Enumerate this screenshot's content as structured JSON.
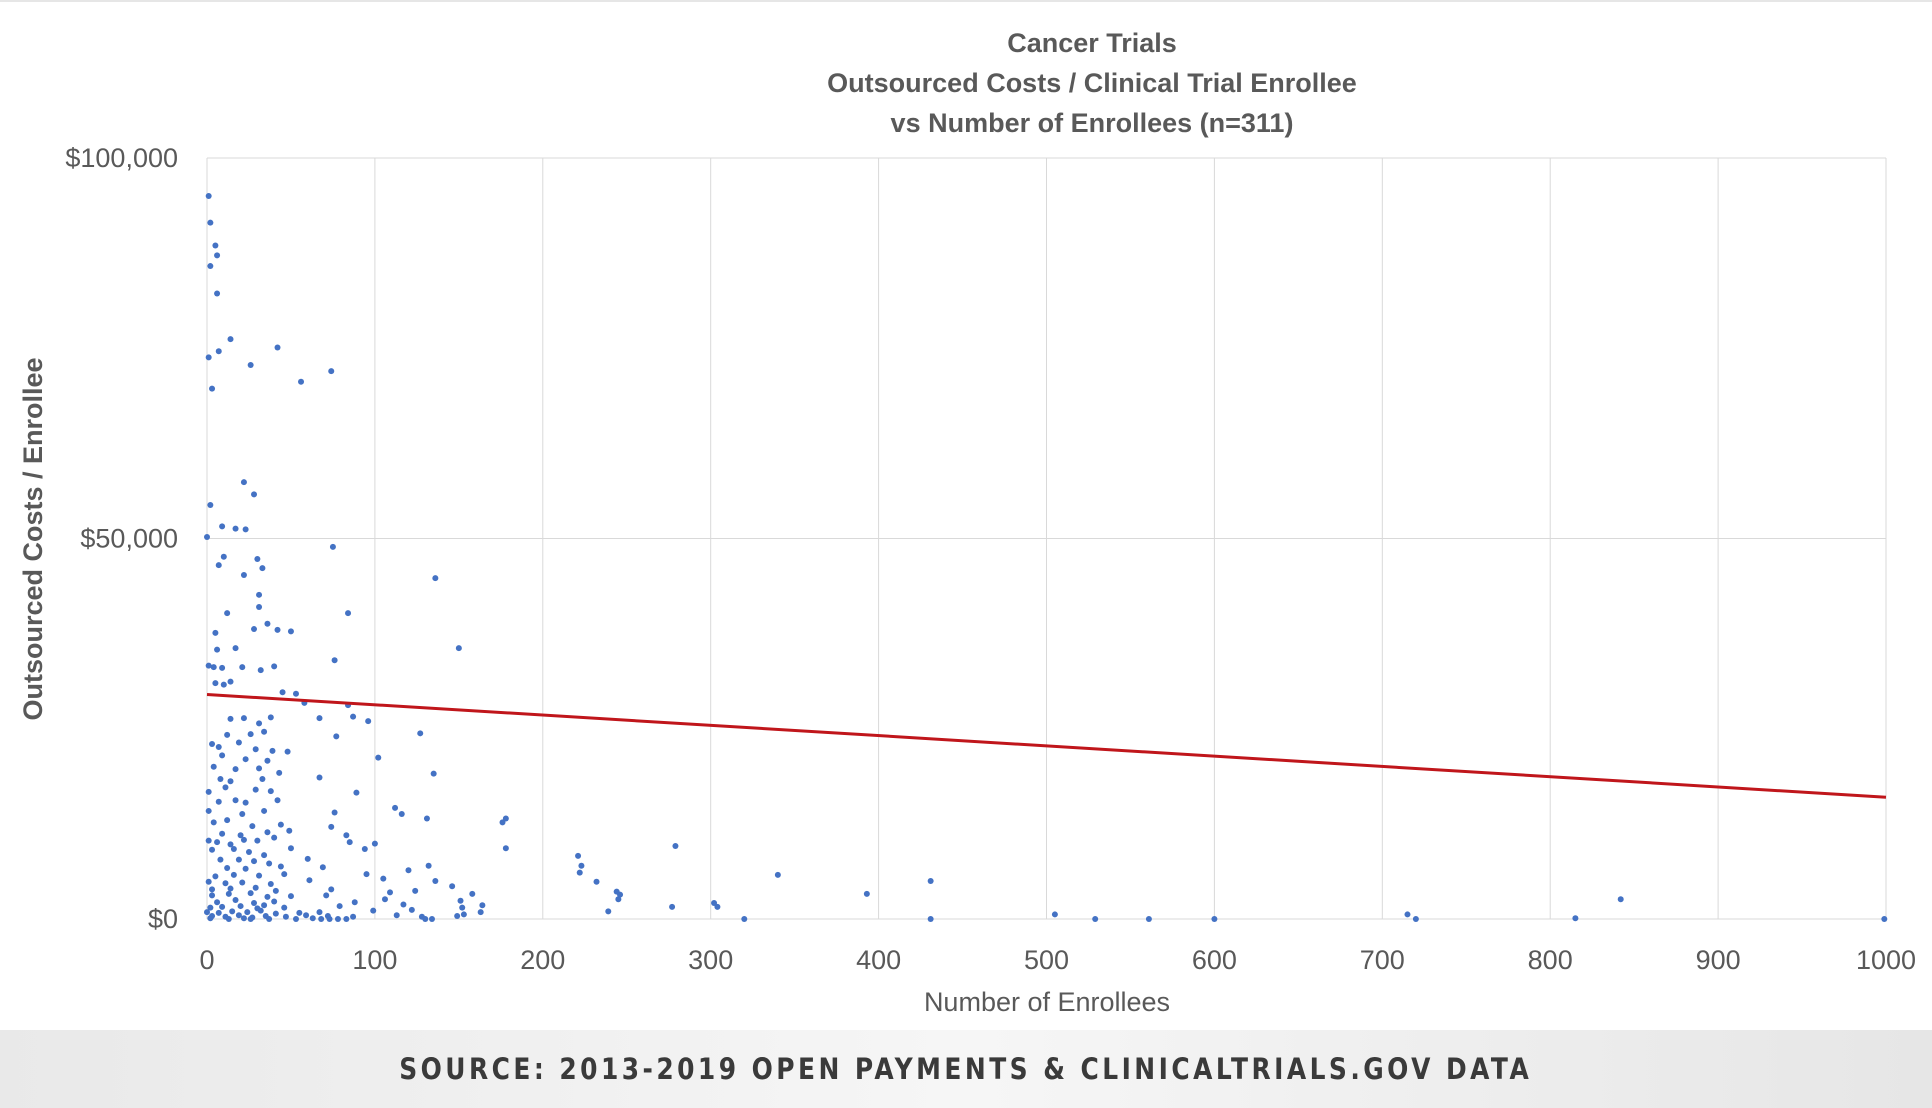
{
  "chart_data": {
    "type": "scatter",
    "title_lines": [
      "Cancer Trials",
      "Outsourced Costs / Clinical Trial Enrollee",
      "vs Number of Enrollees (n=311)"
    ],
    "xlabel": "Number of Enrollees",
    "ylabel": "Outsourced Costs / Enrollee",
    "xlim": [
      0,
      1000
    ],
    "ylim": [
      0,
      100000
    ],
    "x_ticks": [
      0,
      100,
      200,
      300,
      400,
      500,
      600,
      700,
      800,
      900,
      1000
    ],
    "x_tick_labels": [
      "0",
      "100",
      "200",
      "300",
      "400",
      "500",
      "600",
      "700",
      "800",
      "900",
      "1000"
    ],
    "y_ticks": [
      0,
      50000,
      100000
    ],
    "y_tick_labels": [
      "$0",
      "$50,000",
      "$100,000"
    ],
    "grid": true,
    "colors": {
      "points": "#4472c4",
      "trendline": "#c0161b",
      "grid": "#d9d9d9"
    },
    "trendline": {
      "x": [
        0,
        1000
      ],
      "y": [
        29500,
        16000
      ]
    },
    "points": [
      [
        1,
        95000
      ],
      [
        2,
        91500
      ],
      [
        5,
        88500
      ],
      [
        6,
        87200
      ],
      [
        2,
        85800
      ],
      [
        6,
        82200
      ],
      [
        1,
        73800
      ],
      [
        7,
        74600
      ],
      [
        14,
        76200
      ],
      [
        26,
        72800
      ],
      [
        42,
        75100
      ],
      [
        56,
        70600
      ],
      [
        74,
        72000
      ],
      [
        3,
        69700
      ],
      [
        22,
        57400
      ],
      [
        28,
        55800
      ],
      [
        2,
        54400
      ],
      [
        9,
        51600
      ],
      [
        17,
        51300
      ],
      [
        23,
        51200
      ],
      [
        0,
        50200
      ],
      [
        7,
        46500
      ],
      [
        10,
        47600
      ],
      [
        22,
        45200
      ],
      [
        30,
        47300
      ],
      [
        33,
        46100
      ],
      [
        75,
        48900
      ],
      [
        136,
        44800
      ],
      [
        31,
        42600
      ],
      [
        12,
        40200
      ],
      [
        31,
        41000
      ],
      [
        84,
        40200
      ],
      [
        5,
        37600
      ],
      [
        28,
        38100
      ],
      [
        36,
        38800
      ],
      [
        42,
        38000
      ],
      [
        50,
        37800
      ],
      [
        6,
        35400
      ],
      [
        17,
        35600
      ],
      [
        76,
        34000
      ],
      [
        150,
        35600
      ],
      [
        1,
        33300
      ],
      [
        4,
        33100
      ],
      [
        9,
        33000
      ],
      [
        21,
        33100
      ],
      [
        32,
        32700
      ],
      [
        40,
        33200
      ],
      [
        5,
        31000
      ],
      [
        10,
        30800
      ],
      [
        14,
        31200
      ],
      [
        45,
        29800
      ],
      [
        53,
        29600
      ],
      [
        58,
        28400
      ],
      [
        84,
        28100
      ],
      [
        67,
        26400
      ],
      [
        87,
        26600
      ],
      [
        96,
        26000
      ],
      [
        14,
        26300
      ],
      [
        22,
        26400
      ],
      [
        31,
        25700
      ],
      [
        38,
        26500
      ],
      [
        12,
        24200
      ],
      [
        26,
        24300
      ],
      [
        34,
        24600
      ],
      [
        3,
        23000
      ],
      [
        7,
        22600
      ],
      [
        19,
        23200
      ],
      [
        29,
        22300
      ],
      [
        39,
        22100
      ],
      [
        48,
        22000
      ],
      [
        77,
        24000
      ],
      [
        127,
        24400
      ],
      [
        9,
        21500
      ],
      [
        23,
        21000
      ],
      [
        36,
        20800
      ],
      [
        102,
        21200
      ],
      [
        4,
        20000
      ],
      [
        17,
        19700
      ],
      [
        31,
        19800
      ],
      [
        43,
        19200
      ],
      [
        8,
        18400
      ],
      [
        14,
        18100
      ],
      [
        33,
        18400
      ],
      [
        67,
        18600
      ],
      [
        135,
        19100
      ],
      [
        1,
        16700
      ],
      [
        11,
        17300
      ],
      [
        29,
        17000
      ],
      [
        38,
        16800
      ],
      [
        89,
        16600
      ],
      [
        7,
        15400
      ],
      [
        17,
        15600
      ],
      [
        23,
        15300
      ],
      [
        42,
        15600
      ],
      [
        112,
        14600
      ],
      [
        1,
        14200
      ],
      [
        21,
        13800
      ],
      [
        34,
        14200
      ],
      [
        76,
        14000
      ],
      [
        116,
        13800
      ],
      [
        4,
        12700
      ],
      [
        12,
        13000
      ],
      [
        27,
        12200
      ],
      [
        44,
        12400
      ],
      [
        74,
        12100
      ],
      [
        176,
        12700
      ],
      [
        131,
        13200
      ],
      [
        178,
        13200
      ],
      [
        9,
        11200
      ],
      [
        20,
        11000
      ],
      [
        36,
        11400
      ],
      [
        49,
        11600
      ],
      [
        83,
        11000
      ],
      [
        1,
        10300
      ],
      [
        6,
        10100
      ],
      [
        14,
        9800
      ],
      [
        22,
        10400
      ],
      [
        30,
        10300
      ],
      [
        40,
        10700
      ],
      [
        85,
        10100
      ],
      [
        100,
        9900
      ],
      [
        3,
        9100
      ],
      [
        16,
        9200
      ],
      [
        25,
        8800
      ],
      [
        34,
        8400
      ],
      [
        50,
        9300
      ],
      [
        94,
        9200
      ],
      [
        178,
        9300
      ],
      [
        279,
        9600
      ],
      [
        8,
        7800
      ],
      [
        19,
        7800
      ],
      [
        28,
        7600
      ],
      [
        37,
        7300
      ],
      [
        60,
        7900
      ],
      [
        221,
        8300
      ],
      [
        12,
        6700
      ],
      [
        23,
        6600
      ],
      [
        44,
        6900
      ],
      [
        69,
        6800
      ],
      [
        132,
        7000
      ],
      [
        223,
        7000
      ],
      [
        5,
        5600
      ],
      [
        16,
        5800
      ],
      [
        31,
        5700
      ],
      [
        46,
        5900
      ],
      [
        95,
        5900
      ],
      [
        120,
        6400
      ],
      [
        222,
        6100
      ],
      [
        340,
        5800
      ],
      [
        1,
        4900
      ],
      [
        11,
        4700
      ],
      [
        21,
        4800
      ],
      [
        38,
        4600
      ],
      [
        61,
        5100
      ],
      [
        105,
        5300
      ],
      [
        136,
        5000
      ],
      [
        232,
        4900
      ],
      [
        431,
        5000
      ],
      [
        3,
        3900
      ],
      [
        14,
        4000
      ],
      [
        29,
        4100
      ],
      [
        41,
        3700
      ],
      [
        74,
        3900
      ],
      [
        124,
        3700
      ],
      [
        146,
        4300
      ],
      [
        244,
        3600
      ],
      [
        3,
        3100
      ],
      [
        13,
        3300
      ],
      [
        26,
        3400
      ],
      [
        36,
        2900
      ],
      [
        50,
        3000
      ],
      [
        71,
        3100
      ],
      [
        109,
        3500
      ],
      [
        158,
        3300
      ],
      [
        246,
        3200
      ],
      [
        393,
        3300
      ],
      [
        842,
        2600
      ],
      [
        6,
        2200
      ],
      [
        17,
        2500
      ],
      [
        28,
        2100
      ],
      [
        40,
        2300
      ],
      [
        88,
        2200
      ],
      [
        106,
        2600
      ],
      [
        151,
        2400
      ],
      [
        245,
        2600
      ],
      [
        302,
        2100
      ],
      [
        2,
        1500
      ],
      [
        9,
        1600
      ],
      [
        20,
        1700
      ],
      [
        30,
        1400
      ],
      [
        34,
        1800
      ],
      [
        46,
        1500
      ],
      [
        79,
        1700
      ],
      [
        117,
        1900
      ],
      [
        152,
        1500
      ],
      [
        164,
        1800
      ],
      [
        277,
        1600
      ],
      [
        304,
        1600
      ],
      [
        0,
        900
      ],
      [
        7,
        800
      ],
      [
        15,
        1000
      ],
      [
        24,
        900
      ],
      [
        32,
        1100
      ],
      [
        41,
        700
      ],
      [
        55,
        800
      ],
      [
        67,
        900
      ],
      [
        99,
        1100
      ],
      [
        122,
        1200
      ],
      [
        163,
        900
      ],
      [
        239,
        1000
      ],
      [
        3,
        400
      ],
      [
        11,
        300
      ],
      [
        19,
        500
      ],
      [
        27,
        200
      ],
      [
        35,
        400
      ],
      [
        47,
        300
      ],
      [
        59,
        500
      ],
      [
        72,
        400
      ],
      [
        87,
        300
      ],
      [
        113,
        500
      ],
      [
        128,
        300
      ],
      [
        149,
        400
      ],
      [
        153,
        600
      ],
      [
        505,
        600
      ],
      [
        715,
        600
      ],
      [
        2,
        100
      ],
      [
        13,
        0
      ],
      [
        22,
        100
      ],
      [
        26,
        0
      ],
      [
        37,
        0
      ],
      [
        53,
        0
      ],
      [
        63,
        100
      ],
      [
        68,
        0
      ],
      [
        73,
        0
      ],
      [
        78,
        0
      ],
      [
        83,
        0
      ],
      [
        130,
        0
      ],
      [
        134,
        0
      ],
      [
        320,
        0
      ],
      [
        431,
        0
      ],
      [
        529,
        0
      ],
      [
        561,
        0
      ],
      [
        600,
        0
      ],
      [
        720,
        0
      ],
      [
        815,
        100
      ],
      [
        999,
        0
      ]
    ]
  },
  "footer": {
    "source_text": "SOURCE: 2013-2019 OPEN PAYMENTS & CLINICALTRIALS.GOV DATA"
  }
}
